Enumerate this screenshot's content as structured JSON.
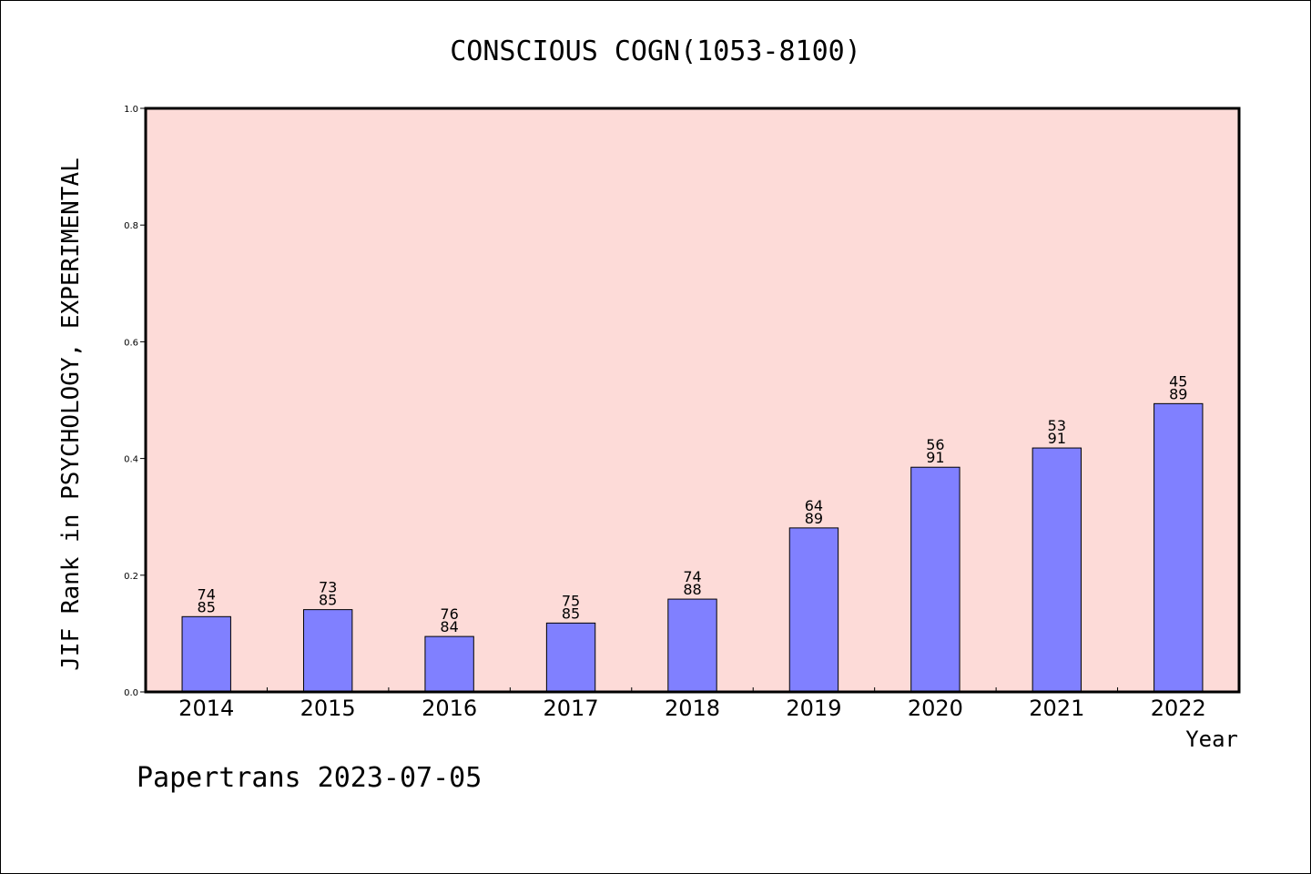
{
  "chart_data": {
    "type": "bar",
    "title": "CONSCIOUS COGN(1053-8100)",
    "xlabel": "Year",
    "ylabel": "JIF Rank in PSYCHOLOGY, EXPERIMENTAL",
    "ylim": [
      0,
      1.0
    ],
    "yticks": [
      "0.0",
      "0.2",
      "0.4",
      "0.6",
      "0.8",
      "1.0"
    ],
    "categories": [
      "2014",
      "2015",
      "2016",
      "2017",
      "2018",
      "2019",
      "2020",
      "2021",
      "2022"
    ],
    "values": [
      0.129,
      0.141,
      0.095,
      0.118,
      0.159,
      0.281,
      0.385,
      0.418,
      0.494
    ],
    "rank_labels": [
      {
        "rank": "74",
        "total": "85"
      },
      {
        "rank": "73",
        "total": "85"
      },
      {
        "rank": "76",
        "total": "84"
      },
      {
        "rank": "75",
        "total": "85"
      },
      {
        "rank": "74",
        "total": "88"
      },
      {
        "rank": "64",
        "total": "89"
      },
      {
        "rank": "56",
        "total": "91"
      },
      {
        "rank": "53",
        "total": "91"
      },
      {
        "rank": "45",
        "total": "89"
      }
    ],
    "grid": false,
    "colors": {
      "plot_bg": "#fddbd8",
      "bar": "#8080ff",
      "bar_edge": "#000000"
    }
  },
  "footer": "Papertrans 2023-07-05"
}
